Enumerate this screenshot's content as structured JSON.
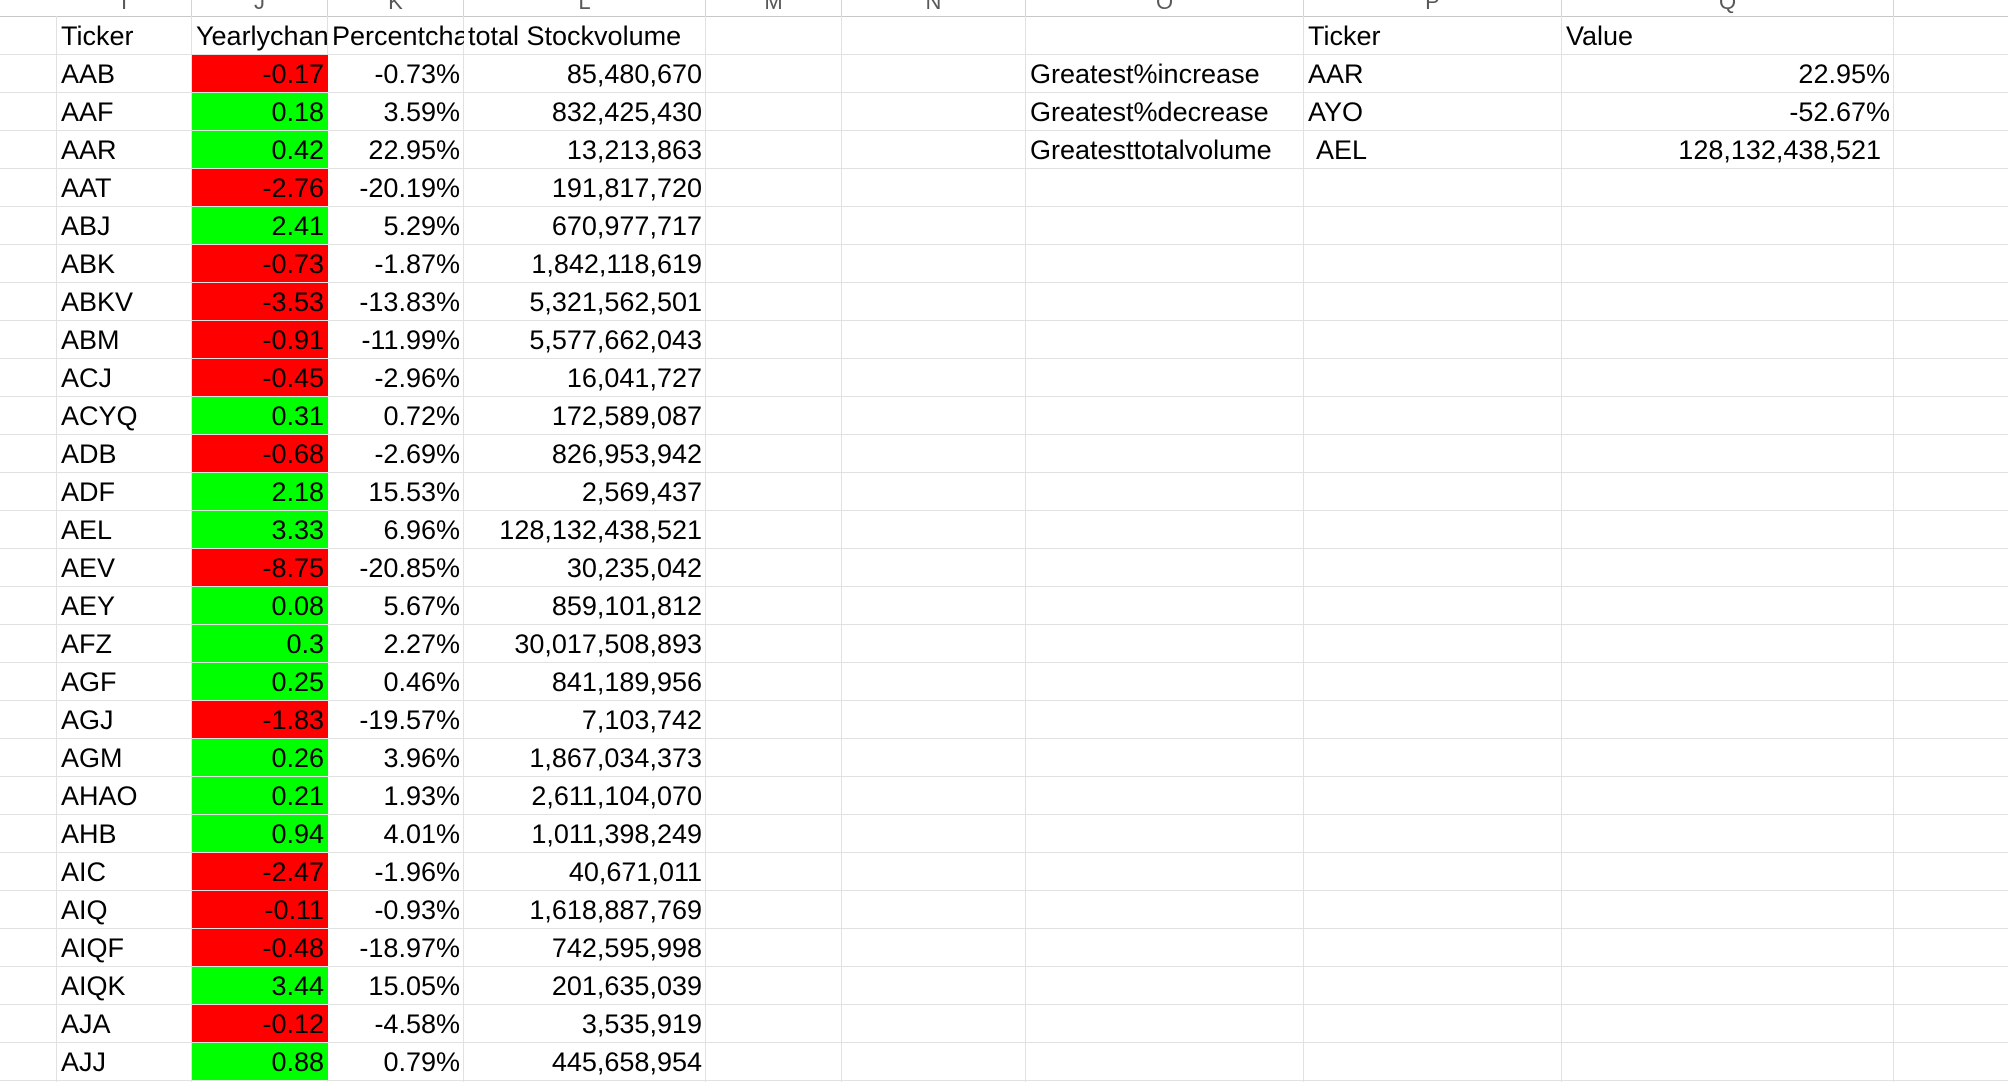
{
  "column_headers": [
    "I",
    "J",
    "K",
    "L",
    "M",
    "N",
    "O",
    "P",
    "Q"
  ],
  "headers": {
    "ticker": "Ticker",
    "yearly_change": "Yearlychan",
    "percent_change": "Percentcha",
    "total_volume": "total Stockvolume"
  },
  "rows": [
    {
      "ticker": "AAB",
      "change": "-0.17",
      "percent": "-0.73%",
      "volume": "85,480,670",
      "positive": false
    },
    {
      "ticker": "AAF",
      "change": "0.18",
      "percent": "3.59%",
      "volume": "832,425,430",
      "positive": true
    },
    {
      "ticker": "AAR",
      "change": "0.42",
      "percent": "22.95%",
      "volume": "13,213,863",
      "positive": true
    },
    {
      "ticker": "AAT",
      "change": "-2.76",
      "percent": "-20.19%",
      "volume": "191,817,720",
      "positive": false
    },
    {
      "ticker": "ABJ",
      "change": "2.41",
      "percent": "5.29%",
      "volume": "670,977,717",
      "positive": true
    },
    {
      "ticker": "ABK",
      "change": "-0.73",
      "percent": "-1.87%",
      "volume": "1,842,118,619",
      "positive": false
    },
    {
      "ticker": "ABKV",
      "change": "-3.53",
      "percent": "-13.83%",
      "volume": "5,321,562,501",
      "positive": false
    },
    {
      "ticker": "ABM",
      "change": "-0.91",
      "percent": "-11.99%",
      "volume": "5,577,662,043",
      "positive": false
    },
    {
      "ticker": "ACJ",
      "change": "-0.45",
      "percent": "-2.96%",
      "volume": "16,041,727",
      "positive": false
    },
    {
      "ticker": "ACYQ",
      "change": "0.31",
      "percent": "0.72%",
      "volume": "172,589,087",
      "positive": true
    },
    {
      "ticker": "ADB",
      "change": "-0.68",
      "percent": "-2.69%",
      "volume": "826,953,942",
      "positive": false
    },
    {
      "ticker": "ADF",
      "change": "2.18",
      "percent": "15.53%",
      "volume": "2,569,437",
      "positive": true
    },
    {
      "ticker": "AEL",
      "change": "3.33",
      "percent": "6.96%",
      "volume": "128,132,438,521",
      "positive": true
    },
    {
      "ticker": "AEV",
      "change": "-8.75",
      "percent": "-20.85%",
      "volume": "30,235,042",
      "positive": false
    },
    {
      "ticker": "AEY",
      "change": "0.08",
      "percent": "5.67%",
      "volume": "859,101,812",
      "positive": true
    },
    {
      "ticker": "AFZ",
      "change": "0.3",
      "percent": "2.27%",
      "volume": "30,017,508,893",
      "positive": true
    },
    {
      "ticker": "AGF",
      "change": "0.25",
      "percent": "0.46%",
      "volume": "841,189,956",
      "positive": true
    },
    {
      "ticker": "AGJ",
      "change": "-1.83",
      "percent": "-19.57%",
      "volume": "7,103,742",
      "positive": false
    },
    {
      "ticker": "AGM",
      "change": "0.26",
      "percent": "3.96%",
      "volume": "1,867,034,373",
      "positive": true
    },
    {
      "ticker": "AHAO",
      "change": "0.21",
      "percent": "1.93%",
      "volume": "2,611,104,070",
      "positive": true
    },
    {
      "ticker": "AHB",
      "change": "0.94",
      "percent": "4.01%",
      "volume": "1,011,398,249",
      "positive": true
    },
    {
      "ticker": "AIC",
      "change": "-2.47",
      "percent": "-1.96%",
      "volume": "40,671,011",
      "positive": false
    },
    {
      "ticker": "AIQ",
      "change": "-0.11",
      "percent": "-0.93%",
      "volume": "1,618,887,769",
      "positive": false
    },
    {
      "ticker": "AIQF",
      "change": "-0.48",
      "percent": "-18.97%",
      "volume": "742,595,998",
      "positive": false
    },
    {
      "ticker": "AIQK",
      "change": "3.44",
      "percent": "15.05%",
      "volume": "201,635,039",
      "positive": true
    },
    {
      "ticker": "AJA",
      "change": "-0.12",
      "percent": "-4.58%",
      "volume": "3,535,919",
      "positive": false
    },
    {
      "ticker": "AJJ",
      "change": "0.88",
      "percent": "0.79%",
      "volume": "445,658,954",
      "positive": true
    }
  ],
  "summary": {
    "header_ticker": "Ticker",
    "header_value": "Value",
    "rows": [
      {
        "label": "Greatest%increase",
        "ticker": "AAR",
        "value": "22.95%"
      },
      {
        "label": "Greatest%decrease",
        "ticker": "AYO",
        "value": "-52.67%"
      },
      {
        "label": "Greatesttotalvolume",
        "ticker": "AEL",
        "value": "128,132,438,521"
      }
    ]
  },
  "colors": {
    "positive_fill": "#00ff00",
    "negative_fill": "#ff0000",
    "gridline": "#e1e1e1"
  }
}
